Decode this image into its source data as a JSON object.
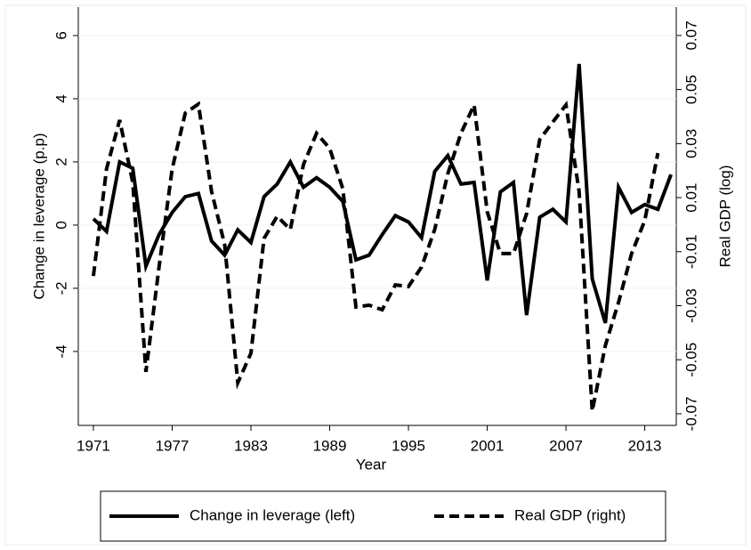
{
  "chart_data": {
    "type": "line",
    "x_label": "Year",
    "y_label": "Change in leverage (p.p)",
    "y2_label": "Real GDP (log)",
    "x": [
      1971,
      1972,
      1973,
      1974,
      1975,
      1976,
      1977,
      1978,
      1979,
      1980,
      1981,
      1982,
      1983,
      1984,
      1985,
      1986,
      1987,
      1988,
      1989,
      1990,
      1991,
      1992,
      1993,
      1994,
      1995,
      1996,
      1997,
      1998,
      1999,
      2000,
      2001,
      2002,
      2003,
      2004,
      2005,
      2006,
      2007,
      2008,
      2009,
      2010,
      2011,
      2012,
      2013,
      2014,
      2015
    ],
    "xlim": [
      1969.85,
      2015.4
    ],
    "xticks": [
      1971,
      1977,
      1983,
      1989,
      1995,
      2001,
      2007,
      2013
    ],
    "ylim": [
      -6.34,
      6.9
    ],
    "yticks": [
      -4,
      -2,
      0,
      2,
      4,
      6
    ],
    "y2lim": [
      -0.0743,
      0.0805
    ],
    "y2ticks": [
      -0.07,
      -0.05,
      -0.03,
      -0.01,
      0.01,
      0.03,
      0.05,
      0.07
    ],
    "series": [
      {
        "name": "Change in leverage (left)",
        "color": "#000000",
        "style": "solid",
        "axis": "y",
        "values": [
          0.2,
          -0.2,
          2.0,
          1.8,
          -1.3,
          -0.3,
          0.4,
          0.9,
          1.0,
          -0.5,
          -0.95,
          -0.15,
          -0.55,
          0.9,
          1.3,
          2.0,
          1.2,
          1.5,
          1.2,
          0.75,
          -1.1,
          -0.95,
          -0.3,
          0.3,
          0.1,
          -0.4,
          1.7,
          2.2,
          1.3,
          1.35,
          -1.75,
          1.05,
          1.35,
          -2.85,
          0.25,
          0.5,
          0.1,
          5.1,
          -1.7,
          -3.1,
          1.2,
          0.4,
          0.65,
          0.5,
          1.6
        ]
      },
      {
        "name": "Real GDP (right)",
        "color": "#000000",
        "style": "dashed",
        "axis": "y2",
        "values": [
          -0.019,
          0.0206,
          0.0387,
          0.0156,
          -0.0545,
          -0.0157,
          0.0206,
          0.0413,
          0.0446,
          0.0123,
          -0.0074,
          -0.0585,
          -0.0476,
          -0.0051,
          0.0031,
          -0.0018,
          0.0222,
          0.0338,
          0.0282,
          0.0133,
          -0.0305,
          -0.0298,
          -0.0315,
          -0.0223,
          -0.0229,
          -0.0157,
          -0.0018,
          0.0189,
          0.0338,
          0.0443,
          0.0048,
          -0.0107,
          -0.0107,
          0.0041,
          0.0315,
          0.038,
          0.0443,
          0.0123,
          -0.069,
          -0.0447,
          -0.0288,
          -0.0107,
          0.0015,
          0.0265,
          null
        ]
      }
    ]
  }
}
